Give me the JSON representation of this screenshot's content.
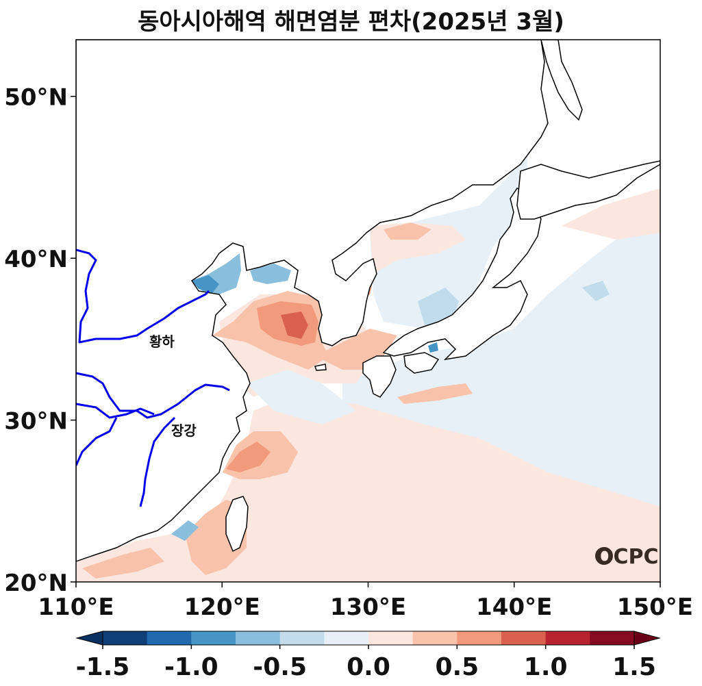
{
  "title": "동아시아해역 해면염분 편차(2025년 3월)",
  "map": {
    "lon_range": [
      110,
      150
    ],
    "lat_range": [
      20,
      53.5
    ],
    "lat_ticks": [
      {
        "value": 20,
        "label": "20°N"
      },
      {
        "value": 30,
        "label": "30°N"
      },
      {
        "value": 40,
        "label": "40°N"
      },
      {
        "value": 50,
        "label": "50°N"
      }
    ],
    "lon_ticks": [
      {
        "value": 110,
        "label": "110°E"
      },
      {
        "value": 120,
        "label": "120°E"
      },
      {
        "value": 130,
        "label": "130°E"
      },
      {
        "value": 140,
        "label": "140°E"
      },
      {
        "value": 150,
        "label": "150°E"
      }
    ],
    "rivers": [
      {
        "name": "황하",
        "label_lon": 115.5,
        "label_lat": 35.0
      },
      {
        "name": "장강",
        "label_lon": 117.0,
        "label_lat": 29.1
      }
    ],
    "logo": "OCPC"
  },
  "colorbar": {
    "colors": [
      "#0e3f78",
      "#2468ae",
      "#4694c6",
      "#89bedc",
      "#c2dcec",
      "#e7f0f6",
      "#fbe6e0",
      "#f8c3aa",
      "#f19b7c",
      "#d9604d",
      "#b72430",
      "#860b22"
    ],
    "under_color": "#083060",
    "over_color": "#6a0016",
    "tick_labels": [
      "-1.5",
      "-1.0",
      "-0.5",
      "0.0",
      "0.5",
      "1.0",
      "1.5"
    ]
  }
}
